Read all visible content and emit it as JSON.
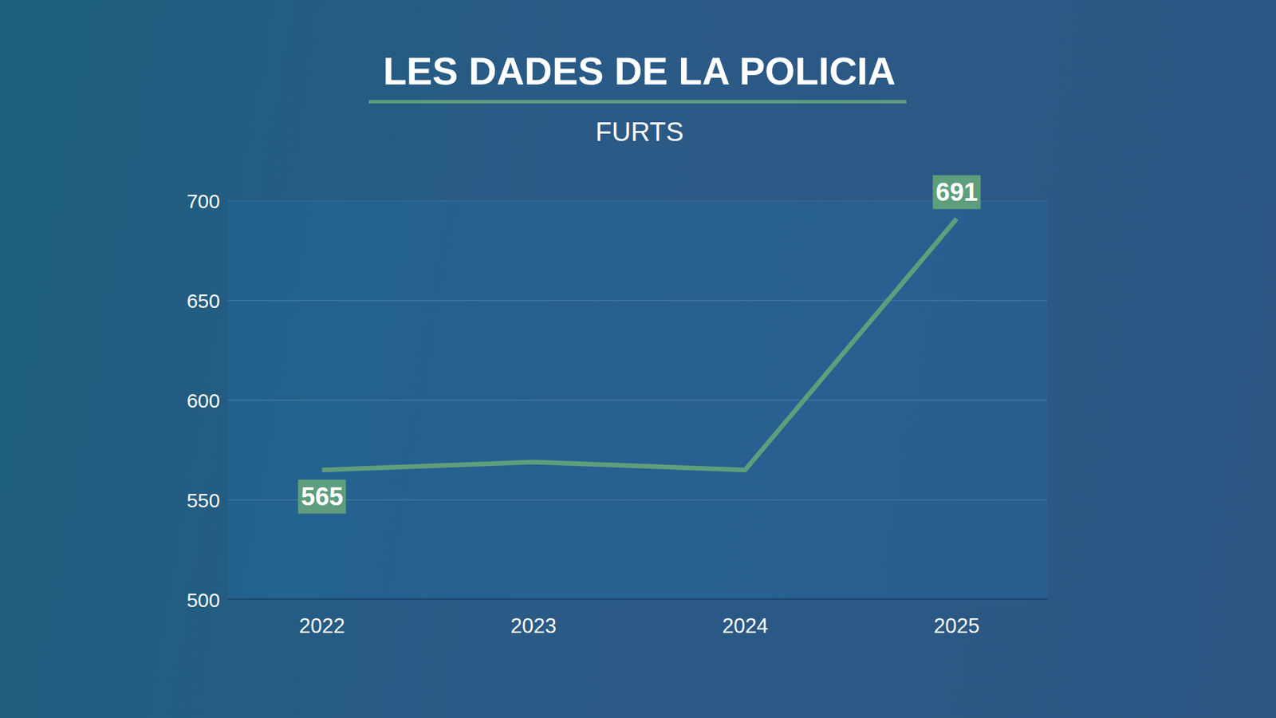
{
  "chart_data": {
    "type": "line",
    "title": "LES DADES DE LA POLICIA",
    "subtitle": "FURTS",
    "categories": [
      "2022",
      "2023",
      "2024",
      "2025"
    ],
    "values": [
      565,
      569,
      565,
      691
    ],
    "value_labels": [
      "565",
      null,
      null,
      "691"
    ],
    "data_labels": true,
    "color": "#5f9e7c",
    "ylim": [
      500,
      700
    ],
    "yticks": [
      500,
      550,
      600,
      650,
      700
    ],
    "grid": true
  }
}
